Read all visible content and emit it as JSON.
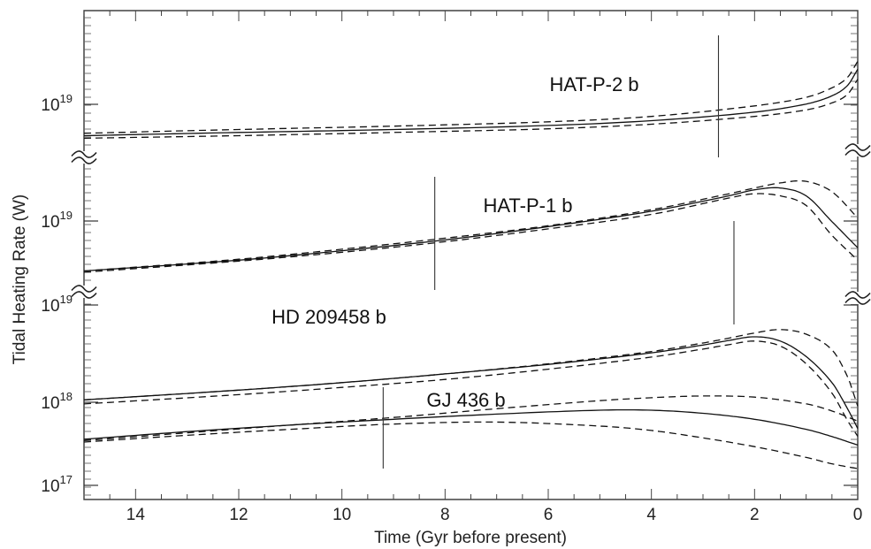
{
  "chart_data": {
    "type": "line",
    "title": "",
    "xlabel": "Time (Gyr before present)",
    "ylabel": "Tidal Heating Rate (W)",
    "xlim": [
      15,
      0
    ],
    "x_ticks": [
      14,
      12,
      10,
      8,
      6,
      4,
      2,
      0
    ],
    "y_scale": "log, broken axis with stacked panels",
    "y_tick_labels": [
      {
        "base": "10",
        "exp": "19"
      },
      {
        "base": "10",
        "exp": "19"
      },
      {
        "base": "10",
        "exp": "19"
      },
      {
        "base": "10",
        "exp": "18"
      },
      {
        "base": "10",
        "exp": "17"
      }
    ],
    "grid": false,
    "legend": "none",
    "line_styles": {
      "nominal": "solid",
      "bounds": "dashed"
    },
    "panels": [
      {
        "name": "HAT-P-2 b",
        "ylim": [
          3e+18,
          1.2e+20
        ],
        "marker_time": 2.7,
        "series": [
          {
            "style": "solid",
            "x": [
              15,
              12,
              9,
              6,
              4,
              2,
              1,
              0.5,
              0.2,
              0
            ],
            "y": [
              4.6e+18,
              5e+18,
              5.4e+18,
              6e+18,
              6.8e+18,
              8.5e+18,
              1.05e+19,
              1.3e+19,
              1.7e+19,
              2.6e+19
            ]
          },
          {
            "style": "dashed",
            "x": [
              15,
              12,
              9,
              6,
              4,
              2,
              1,
              0.5,
              0.2,
              0
            ],
            "y": [
              4.9e+18,
              5.4e+18,
              5.9e+18,
              6.6e+18,
              7.6e+18,
              1e+19,
              1.25e+19,
              1.6e+19,
              2.1e+19,
              3.2e+19
            ]
          },
          {
            "style": "dashed",
            "x": [
              15,
              12,
              9,
              6,
              4,
              2,
              1,
              0.5,
              0.2,
              0
            ],
            "y": [
              4.3e+18,
              4.6e+18,
              5e+18,
              5.5e+18,
              6.2e+18,
              7.6e+18,
              9e+18,
              1.08e+19,
              1.35e+19,
              2e+19
            ]
          }
        ]
      },
      {
        "name": "HAT-P-1 b",
        "ylim": [
          2.3e+18,
          4.5e+19
        ],
        "marker_time": 8.2,
        "series": [
          {
            "style": "solid",
            "x": [
              15,
              12,
              10,
              8,
              6,
              4,
              2.5,
              2,
              1.5,
              1,
              0.5,
              0
            ],
            "y": [
              3.5e+18,
              4.5e+18,
              5.6e+18,
              7.2e+18,
              9.8e+18,
              1.4e+19,
              2e+19,
              2.3e+19,
              2.4e+19,
              2e+19,
              1.1e+19,
              6e+18
            ]
          },
          {
            "style": "dashed",
            "x": [
              15,
              12,
              10,
              8,
              6,
              4,
              2.5,
              2,
              1.5,
              1,
              0.5,
              0
            ],
            "y": [
              3.5e+18,
              4.6e+18,
              5.8e+18,
              7.5e+18,
              1e+19,
              1.45e+19,
              2.1e+19,
              2.4e+19,
              2.7e+19,
              2.8e+19,
              2.2e+19,
              1.2e+19
            ]
          },
          {
            "style": "dashed",
            "x": [
              15,
              12,
              10,
              8,
              6,
              4,
              2.5,
              2,
              1.5,
              1,
              0.5,
              0
            ],
            "y": [
              3.4e+18,
              4.4e+18,
              5.4e+18,
              6.9e+18,
              9.3e+18,
              1.3e+19,
              1.9e+19,
              2.1e+19,
              2e+19,
              1.6e+19,
              8e+18,
              4.5e+18
            ]
          }
        ]
      },
      {
        "name": "HD 209458 b",
        "ylim": [
          5e+17,
          4e+19
        ],
        "marker_time": 2.4,
        "series": [
          {
            "style": "solid",
            "x": [
              15,
              12,
              10,
              8,
              6,
              4,
              3,
              2.5,
              2,
              1.5,
              1,
              0.5,
              0.2,
              0
            ],
            "y": [
              1.7e+18,
              2.3e+18,
              2.9e+18,
              3.8e+18,
              5.1e+18,
              7.3e+18,
              9.3e+18,
              1.07e+19,
              1.2e+19,
              1.05e+19,
              6.5e+18,
              2.9e+18,
              1.3e+18,
              7e+17
            ]
          },
          {
            "style": "dashed",
            "x": [
              15,
              12,
              10,
              8,
              6,
              4,
              3,
              2.5,
              2,
              1.5,
              1,
              0.5,
              0.2,
              0
            ],
            "y": [
              1.7e+18,
              2.3e+18,
              2.9e+18,
              3.8e+18,
              5.2e+18,
              7.6e+18,
              9.9e+18,
              1.15e+19,
              1.35e+19,
              1.5e+19,
              1.3e+19,
              8e+18,
              3.5e+18,
              1.4e+18
            ]
          },
          {
            "style": "dashed",
            "x": [
              15,
              12,
              10,
              8,
              6,
              4,
              3,
              2.5,
              2,
              1.5,
              1,
              0.5,
              0.2,
              0
            ],
            "y": [
              1.5e+18,
              2e+18,
              2.5e+18,
              3.2e+18,
              4.4e+18,
              6.4e+18,
              8.2e+18,
              9.4e+18,
              1.05e+19,
              9e+18,
              5.2e+18,
              2.1e+18,
              9e+17,
              5.5e+17
            ]
          }
        ]
      },
      {
        "name": "GJ 436 b",
        "ylim": [
          1e+17,
          2e+18
        ],
        "marker_time": 9.2,
        "series": [
          {
            "style": "solid",
            "x": [
              15,
              13,
              11,
              9,
              7,
              5,
              4,
              3,
              2,
              1,
              0.5,
              0
            ],
            "y": [
              3.5e+17,
              4.1e+17,
              4.7e+17,
              5.3e+17,
              5.9e+17,
              6.4e+17,
              6.4e+17,
              6e+17,
              5.3e+17,
              4.3e+17,
              3.7e+17,
              3.1e+17
            ]
          },
          {
            "style": "dashed",
            "x": [
              15,
              13,
              11,
              9,
              7,
              5,
              4,
              3,
              2,
              1,
              0.5,
              0
            ],
            "y": [
              3.4e+17,
              4e+17,
              4.7e+17,
              5.5e+17,
              6.6e+17,
              7.8e+17,
              8.3e+17,
              8.6e+17,
              8.4e+17,
              7.3e+17,
              6.3e+17,
              5.1e+17
            ]
          },
          {
            "style": "dashed",
            "x": [
              15,
              13,
              11,
              9,
              7,
              5,
              4,
              3,
              2,
              1,
              0.5,
              0
            ],
            "y": [
              3.3e+17,
              3.8e+17,
              4.3e+17,
              4.8e+17,
              5e+17,
              4.6e+17,
              4.2e+17,
              3.6e+17,
              3e+17,
              2.4e+17,
              2.1e+17,
              1.9e+17
            ]
          }
        ]
      }
    ]
  }
}
